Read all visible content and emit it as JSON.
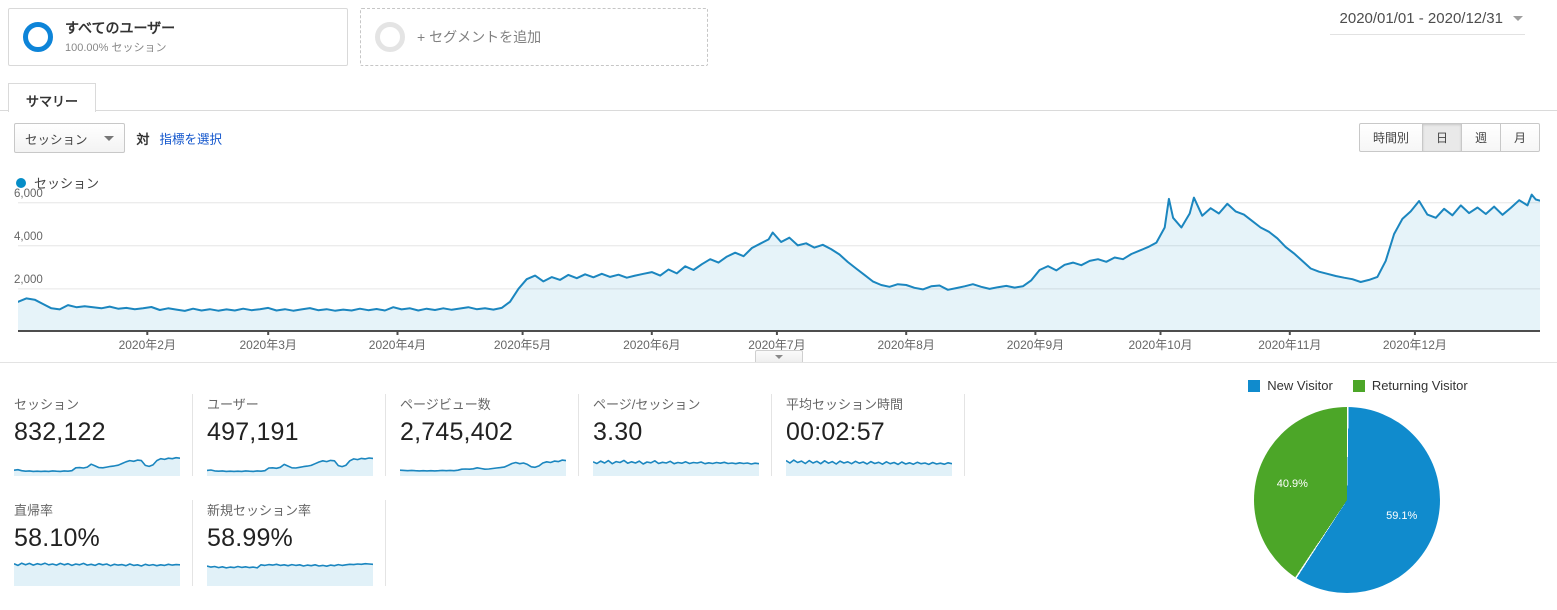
{
  "header": {
    "segment_all_users": {
      "title": "すべてのユーザー",
      "subtitle": "100.00% セッション"
    },
    "add_segment_label": "+ セグメントを追加",
    "date_range": "2020/01/01 - 2020/12/31"
  },
  "tabs": {
    "summary": "サマリー"
  },
  "controls": {
    "metric_select": "セッション",
    "vs_label": "対",
    "choose_metric_link": "指標を選択",
    "granularity": [
      {
        "label": "時間別",
        "active": false
      },
      {
        "label": "日",
        "active": true
      },
      {
        "label": "週",
        "active": false
      },
      {
        "label": "月",
        "active": false
      }
    ]
  },
  "legend": {
    "label": "セッション",
    "color": "#058dc7"
  },
  "colors": {
    "line_blue": "#1b86bf",
    "area_fill": "rgba(5,141,199,0.10)",
    "pie_blue": "#108bcd",
    "pie_green": "#4ca628",
    "grid": "#e6e6e6",
    "axis": "#4d4d4d",
    "segment_circle_blue": "#0d84d8",
    "link_blue": "#1155cc"
  },
  "chart_data": [
    {
      "type": "line",
      "title": "セッション",
      "xlabel": "",
      "ylabel": "セッション",
      "grid": true,
      "legend_position": "top-left",
      "y_axis": {
        "max": 6500,
        "ticks": [
          2000,
          4000,
          6000
        ],
        "tick_labels": [
          "2,000",
          "4,000",
          "6,000"
        ]
      },
      "x_axis": {
        "unit": "day-of-2020",
        "range": [
          1,
          366
        ],
        "months": [
          {
            "label": "2020年2月",
            "day": 32
          },
          {
            "label": "2020年3月",
            "day": 61
          },
          {
            "label": "2020年4月",
            "day": 92
          },
          {
            "label": "2020年5月",
            "day": 122
          },
          {
            "label": "2020年6月",
            "day": 153
          },
          {
            "label": "2020年7月",
            "day": 183
          },
          {
            "label": "2020年8月",
            "day": 214
          },
          {
            "label": "2020年9月",
            "day": 245
          },
          {
            "label": "2020年10月",
            "day": 275
          },
          {
            "label": "2020年11月",
            "day": 306
          },
          {
            "label": "2020年12月",
            "day": 336
          }
        ]
      },
      "points": [
        [
          1,
          1400
        ],
        [
          3,
          1560
        ],
        [
          5,
          1500
        ],
        [
          7,
          1300
        ],
        [
          9,
          1100
        ],
        [
          11,
          1050
        ],
        [
          13,
          1250
        ],
        [
          15,
          1150
        ],
        [
          17,
          1200
        ],
        [
          19,
          1150
        ],
        [
          21,
          1100
        ],
        [
          23,
          1180
        ],
        [
          25,
          1080
        ],
        [
          27,
          1120
        ],
        [
          29,
          1060
        ],
        [
          31,
          1100
        ],
        [
          33,
          1160
        ],
        [
          35,
          1020
        ],
        [
          37,
          1100
        ],
        [
          39,
          1040
        ],
        [
          41,
          980
        ],
        [
          43,
          1080
        ],
        [
          45,
          1000
        ],
        [
          47,
          1060
        ],
        [
          49,
          990
        ],
        [
          51,
          1050
        ],
        [
          53,
          1000
        ],
        [
          55,
          1080
        ],
        [
          57,
          1010
        ],
        [
          59,
          1060
        ],
        [
          61,
          1120
        ],
        [
          63,
          1000
        ],
        [
          65,
          1060
        ],
        [
          67,
          990
        ],
        [
          69,
          1050
        ],
        [
          71,
          1110
        ],
        [
          73,
          1010
        ],
        [
          75,
          1060
        ],
        [
          77,
          990
        ],
        [
          79,
          1040
        ],
        [
          81,
          1000
        ],
        [
          83,
          1080
        ],
        [
          85,
          1010
        ],
        [
          87,
          1070
        ],
        [
          89,
          1000
        ],
        [
          91,
          1150
        ],
        [
          93,
          1050
        ],
        [
          95,
          1100
        ],
        [
          97,
          1000
        ],
        [
          99,
          1080
        ],
        [
          101,
          1020
        ],
        [
          103,
          1100
        ],
        [
          105,
          1030
        ],
        [
          107,
          1090
        ],
        [
          109,
          1150
        ],
        [
          111,
          1060
        ],
        [
          113,
          1100
        ],
        [
          115,
          1040
        ],
        [
          117,
          1120
        ],
        [
          119,
          1400
        ],
        [
          121,
          2000
        ],
        [
          123,
          2450
        ],
        [
          125,
          2620
        ],
        [
          127,
          2350
        ],
        [
          129,
          2550
        ],
        [
          131,
          2420
        ],
        [
          133,
          2650
        ],
        [
          135,
          2500
        ],
        [
          137,
          2680
        ],
        [
          139,
          2540
        ],
        [
          141,
          2700
        ],
        [
          143,
          2560
        ],
        [
          145,
          2660
        ],
        [
          147,
          2520
        ],
        [
          149,
          2620
        ],
        [
          151,
          2700
        ],
        [
          153,
          2780
        ],
        [
          155,
          2620
        ],
        [
          157,
          2900
        ],
        [
          159,
          2720
        ],
        [
          161,
          3050
        ],
        [
          163,
          2880
        ],
        [
          165,
          3150
        ],
        [
          167,
          3380
        ],
        [
          169,
          3220
        ],
        [
          171,
          3500
        ],
        [
          173,
          3680
        ],
        [
          175,
          3520
        ],
        [
          177,
          3900
        ],
        [
          179,
          4100
        ],
        [
          181,
          4300
        ],
        [
          182,
          4620
        ],
        [
          184,
          4180
        ],
        [
          186,
          4380
        ],
        [
          188,
          4020
        ],
        [
          190,
          4120
        ],
        [
          192,
          3920
        ],
        [
          194,
          4050
        ],
        [
          196,
          3850
        ],
        [
          198,
          3600
        ],
        [
          200,
          3250
        ],
        [
          202,
          2950
        ],
        [
          204,
          2650
        ],
        [
          206,
          2350
        ],
        [
          208,
          2180
        ],
        [
          210,
          2100
        ],
        [
          212,
          2220
        ],
        [
          214,
          2180
        ],
        [
          216,
          2050
        ],
        [
          218,
          1980
        ],
        [
          220,
          2120
        ],
        [
          222,
          2160
        ],
        [
          224,
          1960
        ],
        [
          226,
          2040
        ],
        [
          228,
          2120
        ],
        [
          230,
          2220
        ],
        [
          232,
          2100
        ],
        [
          234,
          2000
        ],
        [
          236,
          2080
        ],
        [
          238,
          2140
        ],
        [
          240,
          2060
        ],
        [
          242,
          2120
        ],
        [
          244,
          2400
        ],
        [
          246,
          2880
        ],
        [
          248,
          3060
        ],
        [
          250,
          2860
        ],
        [
          252,
          3120
        ],
        [
          254,
          3220
        ],
        [
          256,
          3100
        ],
        [
          258,
          3300
        ],
        [
          260,
          3380
        ],
        [
          262,
          3260
        ],
        [
          264,
          3460
        ],
        [
          266,
          3380
        ],
        [
          268,
          3620
        ],
        [
          270,
          3780
        ],
        [
          272,
          3940
        ],
        [
          274,
          4150
        ],
        [
          276,
          4850
        ],
        [
          277,
          6180
        ],
        [
          278,
          5300
        ],
        [
          280,
          4850
        ],
        [
          282,
          5500
        ],
        [
          283,
          6240
        ],
        [
          285,
          5400
        ],
        [
          287,
          5750
        ],
        [
          289,
          5500
        ],
        [
          291,
          5950
        ],
        [
          293,
          5600
        ],
        [
          295,
          5450
        ],
        [
          297,
          5150
        ],
        [
          299,
          4850
        ],
        [
          301,
          4650
        ],
        [
          303,
          4350
        ],
        [
          305,
          3950
        ],
        [
          307,
          3650
        ],
        [
          309,
          3300
        ],
        [
          311,
          2950
        ],
        [
          313,
          2800
        ],
        [
          315,
          2700
        ],
        [
          317,
          2600
        ],
        [
          319,
          2520
        ],
        [
          321,
          2450
        ],
        [
          323,
          2320
        ],
        [
          325,
          2420
        ],
        [
          327,
          2560
        ],
        [
          329,
          3300
        ],
        [
          331,
          4550
        ],
        [
          333,
          5250
        ],
        [
          335,
          5600
        ],
        [
          337,
          6080
        ],
        [
          339,
          5450
        ],
        [
          341,
          5300
        ],
        [
          343,
          5720
        ],
        [
          345,
          5420
        ],
        [
          347,
          5880
        ],
        [
          349,
          5520
        ],
        [
          351,
          5780
        ],
        [
          353,
          5480
        ],
        [
          355,
          5820
        ],
        [
          357,
          5440
        ],
        [
          359,
          5760
        ],
        [
          361,
          6120
        ],
        [
          363,
          5880
        ],
        [
          364,
          6380
        ],
        [
          365,
          6150
        ],
        [
          366,
          6100
        ]
      ]
    },
    {
      "type": "pie",
      "title": "",
      "legend_position": "top",
      "slices": [
        {
          "label": "New Visitor",
          "pct": 59.1,
          "display": "59.1%",
          "color": "#108bcd"
        },
        {
          "label": "Returning Visitor",
          "pct": 40.9,
          "display": "40.9%",
          "color": "#4ca628"
        }
      ]
    }
  ],
  "cards": [
    {
      "label": "セッション",
      "value": "832,122",
      "spark": [
        0.2,
        0.22,
        0.18,
        0.16,
        0.17,
        0.15,
        0.16,
        0.15,
        0.16,
        0.15,
        0.17,
        0.16,
        0.15,
        0.17,
        0.16,
        0.18,
        0.3,
        0.31,
        0.29,
        0.33,
        0.45,
        0.38,
        0.31,
        0.3,
        0.33,
        0.36,
        0.38,
        0.41,
        0.48,
        0.55,
        0.6,
        0.57,
        0.62,
        0.6,
        0.4,
        0.36,
        0.42,
        0.6,
        0.68,
        0.65,
        0.7,
        0.68,
        0.72,
        0.7
      ]
    },
    {
      "label": "ユーザー",
      "value": "497,191",
      "spark": [
        0.19,
        0.21,
        0.17,
        0.16,
        0.17,
        0.15,
        0.16,
        0.15,
        0.16,
        0.15,
        0.17,
        0.16,
        0.15,
        0.17,
        0.16,
        0.18,
        0.29,
        0.3,
        0.28,
        0.32,
        0.44,
        0.37,
        0.3,
        0.29,
        0.32,
        0.35,
        0.37,
        0.4,
        0.47,
        0.54,
        0.59,
        0.56,
        0.61,
        0.59,
        0.39,
        0.35,
        0.41,
        0.59,
        0.67,
        0.64,
        0.69,
        0.67,
        0.71,
        0.69
      ]
    },
    {
      "label": "ページビュー数",
      "value": "2,745,402",
      "spark": [
        0.2,
        0.19,
        0.18,
        0.19,
        0.18,
        0.17,
        0.18,
        0.17,
        0.18,
        0.17,
        0.18,
        0.19,
        0.18,
        0.19,
        0.18,
        0.2,
        0.24,
        0.25,
        0.24,
        0.26,
        0.3,
        0.27,
        0.24,
        0.25,
        0.27,
        0.29,
        0.31,
        0.33,
        0.4,
        0.48,
        0.52,
        0.47,
        0.5,
        0.44,
        0.34,
        0.32,
        0.38,
        0.5,
        0.55,
        0.52,
        0.58,
        0.56,
        0.62,
        0.6
      ]
    },
    {
      "label": "ページ/セッション",
      "value": "3.30",
      "spark": [
        0.55,
        0.48,
        0.58,
        0.5,
        0.6,
        0.47,
        0.56,
        0.52,
        0.61,
        0.49,
        0.55,
        0.5,
        0.58,
        0.46,
        0.54,
        0.51,
        0.59,
        0.48,
        0.53,
        0.5,
        0.57,
        0.47,
        0.52,
        0.49,
        0.55,
        0.48,
        0.52,
        0.5,
        0.54,
        0.47,
        0.51,
        0.48,
        0.52,
        0.49,
        0.53,
        0.48,
        0.5,
        0.47,
        0.51,
        0.48,
        0.5,
        0.46,
        0.49,
        0.47
      ]
    },
    {
      "label": "平均セッション時間",
      "value": "00:02:57",
      "spark": [
        0.6,
        0.5,
        0.62,
        0.52,
        0.58,
        0.48,
        0.6,
        0.5,
        0.57,
        0.47,
        0.59,
        0.49,
        0.56,
        0.46,
        0.58,
        0.5,
        0.55,
        0.47,
        0.57,
        0.49,
        0.54,
        0.46,
        0.56,
        0.48,
        0.53,
        0.45,
        0.55,
        0.47,
        0.52,
        0.44,
        0.54,
        0.46,
        0.51,
        0.45,
        0.53,
        0.47,
        0.5,
        0.44,
        0.52,
        0.46,
        0.49,
        0.45,
        0.51,
        0.47
      ]
    },
    {
      "label": "直帰率",
      "value": "58.10%",
      "spark": [
        0.76,
        0.7,
        0.78,
        0.72,
        0.77,
        0.71,
        0.76,
        0.73,
        0.78,
        0.72,
        0.75,
        0.71,
        0.77,
        0.72,
        0.76,
        0.7,
        0.75,
        0.72,
        0.77,
        0.71,
        0.74,
        0.7,
        0.76,
        0.72,
        0.75,
        0.69,
        0.74,
        0.71,
        0.73,
        0.69,
        0.75,
        0.7,
        0.72,
        0.68,
        0.74,
        0.7,
        0.73,
        0.69,
        0.72,
        0.7,
        0.74,
        0.71,
        0.73,
        0.72
      ]
    },
    {
      "label": "新規セッション率",
      "value": "58.99%",
      "spark": [
        0.68,
        0.64,
        0.66,
        0.62,
        0.65,
        0.61,
        0.64,
        0.62,
        0.66,
        0.63,
        0.65,
        0.62,
        0.64,
        0.61,
        0.72,
        0.7,
        0.73,
        0.71,
        0.74,
        0.7,
        0.72,
        0.69,
        0.73,
        0.7,
        0.72,
        0.68,
        0.71,
        0.69,
        0.72,
        0.68,
        0.7,
        0.67,
        0.71,
        0.69,
        0.73,
        0.7,
        0.72,
        0.74,
        0.73,
        0.75,
        0.74,
        0.76,
        0.75,
        0.74
      ]
    }
  ],
  "pie_legend": [
    {
      "label": "New Visitor",
      "color": "#108bcd"
    },
    {
      "label": "Returning Visitor",
      "color": "#4ca628"
    }
  ]
}
